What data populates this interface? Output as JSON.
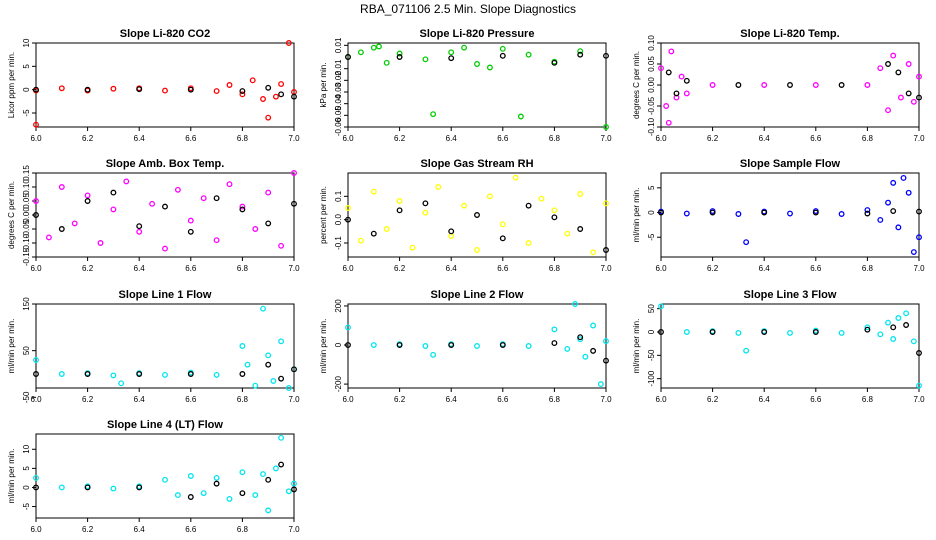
{
  "page_title": "RBA_071106  2.5 Min. Slope Diagnostics",
  "colors": {
    "co2": "#ff0000",
    "pressure": "#00cc00",
    "temp": "#ff00ff",
    "ambtemp": "#ff00ff",
    "rh": "#ffff00",
    "sample": "#0000ff",
    "line": "#00e5ee",
    "ref": "#000000"
  },
  "chart_data": [
    {
      "id": "co2",
      "type": "scatter",
      "title": "Slope Li-820 CO2",
      "ylabel": "Licor ppm per min.",
      "xlim": [
        6.0,
        7.0
      ],
      "ylim": [
        -8,
        10
      ],
      "xticks": [
        "6.0",
        "6.2",
        "6.4",
        "6.6",
        "6.8",
        "7.0"
      ],
      "yticks": [
        {
          "v": 10,
          "label": "10"
        },
        {
          "v": 5,
          "label": "5"
        },
        {
          "v": 0,
          "label": "0"
        },
        {
          "v": -5,
          "label": "-5"
        }
      ],
      "color": "co2",
      "series": [
        {
          "name": "primary",
          "x": [
            6.0,
            6.1,
            6.2,
            6.3,
            6.4,
            6.5,
            6.6,
            6.7,
            6.75,
            6.8,
            6.84,
            6.88,
            6.9,
            6.93,
            6.95,
            6.98,
            7.0,
            6.0
          ],
          "y": [
            -0.2,
            0.3,
            -0.2,
            0.2,
            0.3,
            -0.2,
            0.3,
            -0.3,
            1.0,
            -1.0,
            2.0,
            -2.0,
            -6.0,
            -1.5,
            1.2,
            10.0,
            -0.5,
            -7.5
          ]
        },
        {
          "name": "reference",
          "x": [
            6.0,
            6.2,
            6.4,
            6.6,
            6.8,
            6.9,
            6.95,
            7.0
          ],
          "y": [
            0.0,
            0.0,
            0.1,
            0.0,
            -0.3,
            0.4,
            -1.0,
            -1.5
          ]
        }
      ]
    },
    {
      "id": "pressure",
      "type": "scatter",
      "title": "Slope Li-820 Pressure",
      "ylabel": "kPa per min.",
      "xlim": [
        6.0,
        7.0
      ],
      "ylim": [
        -0.06,
        0.012
      ],
      "xticks": [
        "6.0",
        "6.2",
        "6.4",
        "6.6",
        "6.8",
        "7.0"
      ],
      "yticks": [
        {
          "v": 0.01,
          "label": "0.01"
        },
        {
          "v": -0.01,
          "label": "-0.01"
        },
        {
          "v": -0.02,
          "label": "-0.02"
        },
        {
          "v": -0.03,
          "label": "-0.03"
        },
        {
          "v": -0.04,
          "label": "-0.04"
        },
        {
          "v": -0.05,
          "label": "-0.05"
        },
        {
          "v": -0.06,
          "label": "-0.06"
        }
      ],
      "color": "pressure",
      "series": [
        {
          "name": "primary",
          "x": [
            6.0,
            6.05,
            6.1,
            6.15,
            6.2,
            6.3,
            6.33,
            6.4,
            6.5,
            6.6,
            6.67,
            6.7,
            6.8,
            6.9,
            7.0,
            6.12,
            6.45,
            6.55
          ],
          "y": [
            0.0,
            0.004,
            0.008,
            -0.005,
            0.003,
            -0.002,
            -0.049,
            0.004,
            -0.006,
            0.007,
            -0.051,
            0.002,
            -0.004,
            0.005,
            -0.06,
            0.009,
            0.008,
            -0.009
          ]
        },
        {
          "name": "reference",
          "x": [
            6.0,
            6.2,
            6.4,
            6.6,
            6.8,
            6.9,
            7.0
          ],
          "y": [
            0.0,
            0.0,
            -0.001,
            0.001,
            -0.005,
            0.002,
            0.001
          ]
        }
      ]
    },
    {
      "id": "temp",
      "type": "scatter",
      "title": "Slope Li-820 Temp.",
      "ylabel": "degrees C per min.",
      "xlim": [
        6.0,
        7.0
      ],
      "ylim": [
        -0.1,
        0.1
      ],
      "xticks": [
        "6.0",
        "6.2",
        "6.4",
        "6.6",
        "6.8",
        "7.0"
      ],
      "yticks": [
        {
          "v": 0.1,
          "label": "0.10"
        },
        {
          "v": 0.05,
          "label": "0.05"
        },
        {
          "v": 0.0,
          "label": "0.00"
        },
        {
          "v": -0.05,
          "label": "-0.05"
        },
        {
          "v": -0.1,
          "label": "-0.10"
        }
      ],
      "color": "temp",
      "series": [
        {
          "name": "primary",
          "x": [
            6.0,
            6.02,
            6.04,
            6.06,
            6.08,
            6.1,
            6.2,
            6.4,
            6.6,
            6.8,
            6.85,
            6.88,
            6.9,
            6.93,
            6.96,
            6.98,
            7.0,
            6.03
          ],
          "y": [
            0.04,
            -0.05,
            0.08,
            -0.03,
            0.02,
            -0.02,
            0.0,
            0.0,
            0.0,
            0.0,
            0.04,
            -0.06,
            0.07,
            -0.03,
            0.05,
            -0.04,
            0.02,
            -0.09
          ]
        },
        {
          "name": "reference",
          "x": [
            6.03,
            6.06,
            6.1,
            6.3,
            6.5,
            6.7,
            6.88,
            6.92,
            6.96,
            7.0
          ],
          "y": [
            0.03,
            -0.02,
            0.01,
            0.0,
            0.0,
            0.0,
            0.05,
            0.03,
            -0.02,
            -0.03
          ]
        }
      ]
    },
    {
      "id": "ambtemp",
      "type": "scatter",
      "title": "Slope Amb. Box Temp.",
      "ylabel": "degrees C per min.",
      "xlim": [
        6.0,
        7.0
      ],
      "ylim": [
        -0.15,
        0.15
      ],
      "xticks": [
        "6.0",
        "6.2",
        "6.4",
        "6.6",
        "6.8",
        "7.0"
      ],
      "yticks": [
        {
          "v": 0.15,
          "label": "0.15"
        },
        {
          "v": 0.1,
          "label": "0.10"
        },
        {
          "v": 0.05,
          "label": "0.05"
        },
        {
          "v": 0.0,
          "label": "0.00"
        },
        {
          "v": -0.05,
          "label": "-0.05"
        },
        {
          "v": -0.1,
          "label": "-0.10"
        },
        {
          "v": -0.15,
          "label": "-0.15"
        }
      ],
      "color": "ambtemp",
      "series": [
        {
          "name": "primary",
          "x": [
            6.0,
            6.05,
            6.1,
            6.15,
            6.2,
            6.25,
            6.3,
            6.35,
            6.4,
            6.45,
            6.5,
            6.55,
            6.6,
            6.65,
            6.7,
            6.75,
            6.8,
            6.85,
            6.9,
            6.95,
            7.0
          ],
          "y": [
            0.05,
            -0.08,
            0.1,
            -0.03,
            0.07,
            -0.1,
            0.02,
            0.12,
            -0.06,
            0.04,
            -0.12,
            0.09,
            -0.02,
            0.06,
            -0.09,
            0.11,
            0.03,
            -0.05,
            0.08,
            -0.11,
            0.15
          ]
        },
        {
          "name": "reference",
          "x": [
            6.0,
            6.1,
            6.2,
            6.3,
            6.4,
            6.5,
            6.6,
            6.7,
            6.8,
            6.9,
            7.0
          ],
          "y": [
            0.0,
            -0.05,
            0.05,
            0.08,
            -0.04,
            0.03,
            -0.06,
            0.06,
            0.02,
            -0.03,
            0.04
          ]
        }
      ]
    },
    {
      "id": "rh",
      "type": "scatter",
      "title": "Slope Gas Stream RH",
      "ylabel": "percent per min.",
      "xlim": [
        6.0,
        7.0
      ],
      "ylim": [
        -0.16,
        0.2
      ],
      "xticks": [
        "6.0",
        "6.2",
        "6.4",
        "6.6",
        "6.8",
        "7.0"
      ],
      "yticks": [
        {
          "v": 0.1,
          "label": "0.1"
        },
        {
          "v": 0.0,
          "label": "0.0"
        },
        {
          "v": -0.1,
          "label": "-0.1"
        }
      ],
      "color": "rh",
      "series": [
        {
          "name": "primary",
          "x": [
            6.0,
            6.05,
            6.1,
            6.15,
            6.2,
            6.25,
            6.3,
            6.35,
            6.4,
            6.45,
            6.5,
            6.55,
            6.6,
            6.65,
            6.7,
            6.75,
            6.8,
            6.85,
            6.9,
            6.95,
            7.0
          ],
          "y": [
            0.05,
            -0.09,
            0.12,
            -0.04,
            0.08,
            -0.12,
            0.03,
            0.14,
            -0.07,
            0.06,
            -0.13,
            0.1,
            -0.02,
            0.18,
            -0.1,
            0.09,
            0.04,
            -0.06,
            0.11,
            -0.14,
            0.07
          ]
        },
        {
          "name": "reference",
          "x": [
            6.0,
            6.1,
            6.2,
            6.3,
            6.4,
            6.5,
            6.6,
            6.7,
            6.8,
            6.9,
            7.0
          ],
          "y": [
            0.0,
            -0.06,
            0.04,
            0.07,
            -0.05,
            0.02,
            -0.08,
            0.06,
            0.01,
            -0.04,
            -0.13
          ]
        }
      ]
    },
    {
      "id": "sample",
      "type": "scatter",
      "title": "Slope Sample Flow",
      "ylabel": "ml/min per min.",
      "xlim": [
        6.0,
        7.0
      ],
      "ylim": [
        -9,
        8
      ],
      "xticks": [
        "6.0",
        "6.2",
        "6.4",
        "6.6",
        "6.8",
        "7.0"
      ],
      "yticks": [
        {
          "v": 5,
          "label": "5"
        },
        {
          "v": 0,
          "label": "0"
        },
        {
          "v": -5,
          "label": "-5"
        }
      ],
      "color": "sample",
      "series": [
        {
          "name": "primary",
          "x": [
            6.0,
            6.1,
            6.2,
            6.3,
            6.33,
            6.4,
            6.5,
            6.6,
            6.7,
            6.8,
            6.85,
            6.88,
            6.9,
            6.92,
            6.94,
            6.96,
            6.98,
            7.0
          ],
          "y": [
            0.2,
            -0.2,
            0.3,
            -0.3,
            -6.0,
            0.2,
            -0.2,
            0.3,
            -0.3,
            0.5,
            -1.5,
            2.0,
            6.0,
            -3.0,
            7.0,
            4.0,
            -8.0,
            -5.0
          ]
        },
        {
          "name": "reference",
          "x": [
            6.0,
            6.2,
            6.4,
            6.6,
            6.8,
            6.9,
            7.0
          ],
          "y": [
            0.0,
            0.0,
            0.0,
            0.0,
            -0.2,
            0.3,
            0.2
          ]
        }
      ]
    },
    {
      "id": "line1",
      "type": "scatter",
      "title": "Slope Line 1 Flow",
      "ylabel": "ml/min per min.",
      "xlim": [
        6.0,
        7.0
      ],
      "ylim": [
        -30,
        150
      ],
      "xticks": [
        "6.0",
        "6.2",
        "6.4",
        "6.6",
        "6.8",
        "7.0"
      ],
      "yticks": [
        {
          "v": 150,
          "label": "150"
        },
        {
          "v": 50,
          "label": "50"
        },
        {
          "v": -50,
          "label": "-50"
        }
      ],
      "color": "line",
      "series": [
        {
          "name": "primary",
          "x": [
            6.0,
            6.1,
            6.2,
            6.3,
            6.33,
            6.4,
            6.5,
            6.6,
            6.7,
            6.8,
            6.82,
            6.85,
            6.88,
            6.9,
            6.92,
            6.95,
            6.98,
            7.0
          ],
          "y": [
            30,
            0,
            2,
            -3,
            -20,
            2,
            -2,
            3,
            -2,
            60,
            20,
            -25,
            140,
            40,
            -15,
            70,
            -30,
            10
          ]
        },
        {
          "name": "reference",
          "x": [
            6.0,
            6.2,
            6.4,
            6.6,
            6.8,
            6.9,
            6.95,
            7.0
          ],
          "y": [
            0,
            0,
            0,
            0,
            0,
            20,
            -10,
            10
          ]
        }
      ]
    },
    {
      "id": "line2",
      "type": "scatter",
      "title": "Slope Line 2 Flow",
      "ylabel": "ml/min per min.",
      "xlim": [
        6.0,
        7.0
      ],
      "ylim": [
        -220,
        210
      ],
      "xticks": [
        "6.0",
        "6.2",
        "6.4",
        "6.6",
        "6.8",
        "7.0"
      ],
      "yticks": [
        {
          "v": 200,
          "label": "200"
        },
        {
          "v": 0,
          "label": "0"
        },
        {
          "v": -200,
          "label": "-200"
        }
      ],
      "color": "line",
      "series": [
        {
          "name": "primary",
          "x": [
            6.0,
            6.1,
            6.2,
            6.3,
            6.33,
            6.4,
            6.5,
            6.6,
            6.7,
            6.8,
            6.85,
            6.88,
            6.9,
            6.92,
            6.95,
            6.98,
            7.0
          ],
          "y": [
            90,
            0,
            5,
            -5,
            -50,
            5,
            -5,
            5,
            -5,
            80,
            -20,
            210,
            30,
            -60,
            100,
            -200,
            20
          ]
        },
        {
          "name": "reference",
          "x": [
            6.0,
            6.2,
            6.4,
            6.6,
            6.8,
            6.9,
            6.95,
            7.0
          ],
          "y": [
            0,
            0,
            0,
            0,
            10,
            40,
            -30,
            -80
          ]
        }
      ]
    },
    {
      "id": "line3",
      "type": "scatter",
      "title": "Slope Line 3 Flow",
      "ylabel": "ml/min per min.",
      "xlim": [
        6.0,
        7.0
      ],
      "ylim": [
        -120,
        60
      ],
      "xticks": [
        "6.0",
        "6.2",
        "6.4",
        "6.6",
        "6.8",
        "7.0"
      ],
      "yticks": [
        {
          "v": 50,
          "label": "50"
        },
        {
          "v": 0,
          "label": "0"
        },
        {
          "v": -50,
          "label": "-50"
        },
        {
          "v": -100,
          "label": "-100"
        }
      ],
      "color": "line",
      "series": [
        {
          "name": "primary",
          "x": [
            6.0,
            6.1,
            6.2,
            6.3,
            6.33,
            6.4,
            6.5,
            6.6,
            6.7,
            6.8,
            6.85,
            6.88,
            6.9,
            6.92,
            6.95,
            6.98,
            7.0
          ],
          "y": [
            55,
            0,
            2,
            -2,
            -40,
            2,
            -2,
            3,
            -2,
            10,
            -5,
            20,
            -15,
            30,
            40,
            -20,
            -115
          ]
        },
        {
          "name": "reference",
          "x": [
            6.0,
            6.2,
            6.4,
            6.6,
            6.8,
            6.9,
            6.95,
            7.0
          ],
          "y": [
            0,
            0,
            0,
            0,
            5,
            10,
            15,
            -45
          ]
        }
      ]
    },
    {
      "id": "line4",
      "type": "scatter",
      "title": "Slope Line 4 (LT) Flow",
      "ylabel": "ml/min per min.",
      "xlim": [
        6.0,
        7.0
      ],
      "ylim": [
        -8,
        14
      ],
      "xticks": [
        "6.0",
        "6.2",
        "6.4",
        "6.6",
        "6.8",
        "7.0"
      ],
      "yticks": [
        {
          "v": 10,
          "label": "10"
        },
        {
          "v": 5,
          "label": "5"
        },
        {
          "v": 0,
          "label": "0"
        },
        {
          "v": -5,
          "label": "-5"
        }
      ],
      "color": "line",
      "series": [
        {
          "name": "primary",
          "x": [
            6.0,
            6.1,
            6.2,
            6.3,
            6.4,
            6.5,
            6.55,
            6.6,
            6.65,
            6.7,
            6.75,
            6.8,
            6.85,
            6.88,
            6.9,
            6.93,
            6.95,
            6.98,
            7.0
          ],
          "y": [
            2.5,
            0,
            0.3,
            -0.3,
            0.3,
            2.0,
            -2.0,
            3.0,
            -1.5,
            2.5,
            -3.0,
            4.0,
            -2.0,
            3.5,
            -6.0,
            5.0,
            13.0,
            -1.0,
            1.0
          ]
        },
        {
          "name": "reference",
          "x": [
            6.0,
            6.2,
            6.4,
            6.6,
            6.7,
            6.8,
            6.9,
            6.95,
            7.0
          ],
          "y": [
            0,
            0,
            0,
            -2.5,
            1.0,
            -1.5,
            2.0,
            6.0,
            -0.5
          ]
        }
      ]
    }
  ]
}
